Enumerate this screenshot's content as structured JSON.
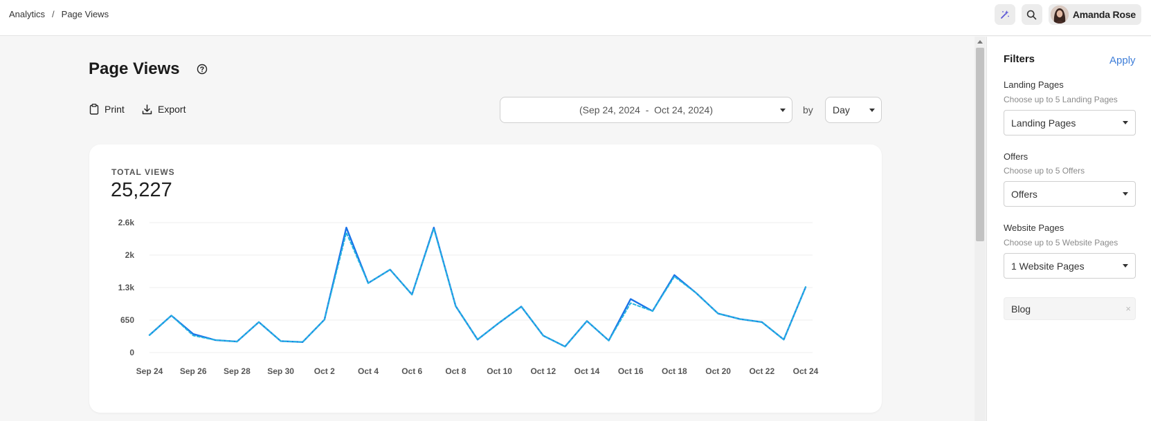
{
  "breadcrumb": {
    "root": "Analytics",
    "separator": "/",
    "current": "Page Views"
  },
  "header": {
    "user_name": "Amanda Rose",
    "accent_color": "#5b57d6"
  },
  "page": {
    "title": "Page Views"
  },
  "toolbar": {
    "print_label": "Print",
    "export_label": "Export"
  },
  "date_range": {
    "value": "(Sep 24, 2024  -  Oct 24, 2024)"
  },
  "by_label": "by",
  "period": {
    "value": "Day"
  },
  "summary": {
    "label": "TOTAL VIEWS",
    "value": "25,227"
  },
  "chart_data": {
    "type": "line",
    "x": [
      "Sep 24",
      "Sep 25",
      "Sep 26",
      "Sep 27",
      "Sep 28",
      "Sep 29",
      "Sep 30",
      "Oct 1",
      "Oct 2",
      "Oct 3",
      "Oct 4",
      "Oct 5",
      "Oct 6",
      "Oct 7",
      "Oct 8",
      "Oct 9",
      "Oct 10",
      "Oct 11",
      "Oct 12",
      "Oct 13",
      "Oct 14",
      "Oct 15",
      "Oct 16",
      "Oct 17",
      "Oct 18",
      "Oct 19",
      "Oct 20",
      "Oct 21",
      "Oct 22",
      "Oct 23",
      "Oct 24"
    ],
    "x_tick_labels": [
      "Sep 24",
      "Sep 26",
      "Sep 28",
      "Sep 30",
      "Oct 2",
      "Oct 4",
      "Oct 6",
      "Oct 8",
      "Oct 10",
      "Oct 12",
      "Oct 14",
      "Oct 16",
      "Oct 18",
      "Oct 20",
      "Oct 22",
      "Oct 24"
    ],
    "y_tick_labels": [
      "0",
      "650",
      "1.3k",
      "2k",
      "2.6k"
    ],
    "y_ticks": [
      0,
      650,
      1300,
      1950,
      2600
    ],
    "ylim": [
      0,
      2600
    ],
    "series": [
      {
        "color": "#1a73e8",
        "style": "solid",
        "values": [
          350,
          740,
          370,
          250,
          220,
          610,
          230,
          210,
          660,
          2500,
          1390,
          1660,
          1160,
          2500,
          930,
          260,
          600,
          920,
          340,
          120,
          630,
          240,
          1070,
          830,
          1550,
          1190,
          780,
          670,
          610,
          260,
          1310
        ]
      },
      {
        "color": "#26b5e0",
        "style": "dashed",
        "values": [
          350,
          740,
          340,
          250,
          220,
          610,
          230,
          210,
          660,
          2400,
          1390,
          1660,
          1160,
          2480,
          930,
          260,
          600,
          920,
          340,
          120,
          630,
          240,
          990,
          830,
          1520,
          1190,
          780,
          670,
          610,
          260,
          1310
        ]
      }
    ],
    "grid": true,
    "legend": "none"
  },
  "filters": {
    "title": "Filters",
    "apply_label": "Apply",
    "groups": [
      {
        "label": "Landing Pages",
        "hint": "Choose up to 5 Landing Pages",
        "value": "Landing Pages"
      },
      {
        "label": "Offers",
        "hint": "Choose up to 5 Offers",
        "value": "Offers"
      },
      {
        "label": "Website Pages",
        "hint": "Choose up to 5 Website Pages",
        "value": "1 Website Pages"
      }
    ],
    "selected_tag": "Blog",
    "tag_close": "×"
  }
}
